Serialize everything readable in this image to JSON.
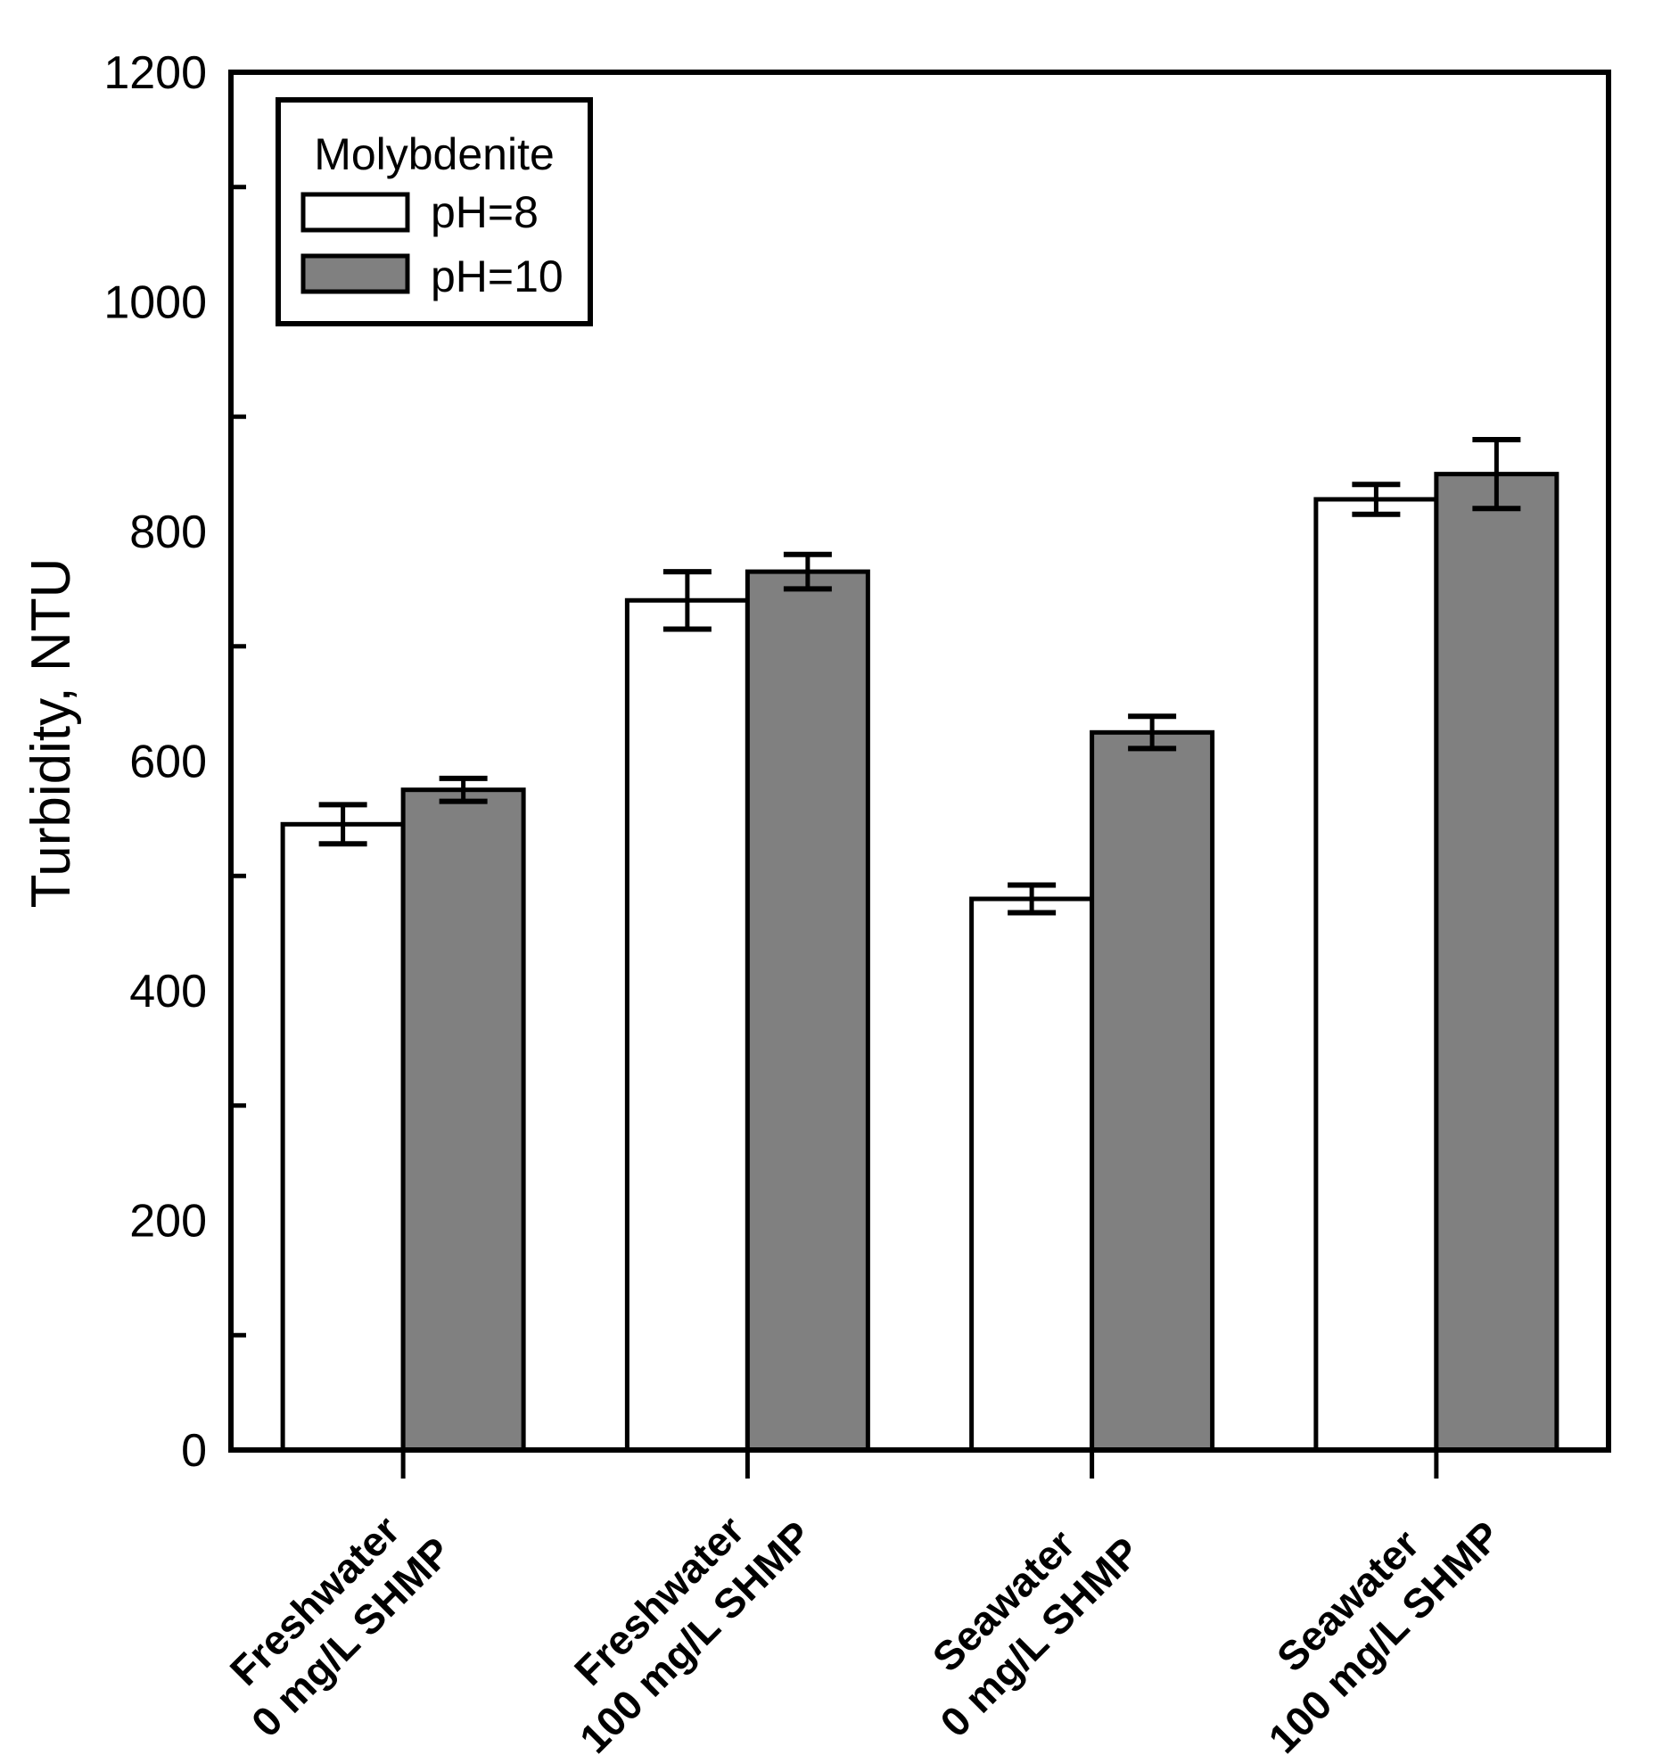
{
  "chart_data": {
    "type": "bar",
    "title": "",
    "xlabel": "",
    "ylabel": "Turbidity, NTU",
    "ylim": [
      0,
      1200
    ],
    "y_major_ticks": [
      0,
      200,
      400,
      600,
      800,
      1000,
      1200
    ],
    "y_minor_ticks": [
      100,
      300,
      500,
      700,
      900,
      1100
    ],
    "grid": false,
    "categories": [
      {
        "line1": "Freshwater",
        "line2": "0 mg/L SHMP"
      },
      {
        "line1": "Freshwater",
        "line2": "100 mg/L SHMP"
      },
      {
        "line1": "Seawater",
        "line2": "0 mg/L SHMP"
      },
      {
        "line1": "Seawater",
        "line2": "100 mg/L SHMP"
      }
    ],
    "series": [
      {
        "name": "pH=8",
        "fill": "#ffffff",
        "values": [
          545,
          740,
          480,
          828
        ],
        "errors": [
          17,
          25,
          12,
          13
        ]
      },
      {
        "name": "pH=10",
        "fill": "#808080",
        "values": [
          575,
          765,
          625,
          850
        ],
        "errors": [
          10,
          15,
          14,
          30
        ]
      }
    ],
    "legend": {
      "position": "top-left",
      "title": "Molybdenite",
      "entries": [
        {
          "label": "pH=8",
          "fill": "#ffffff"
        },
        {
          "label": "pH=10",
          "fill": "#808080"
        }
      ]
    },
    "colors": {
      "stroke": "#000000",
      "bar_white": "#ffffff",
      "bar_gray": "#808080",
      "background": "#ffffff"
    }
  }
}
